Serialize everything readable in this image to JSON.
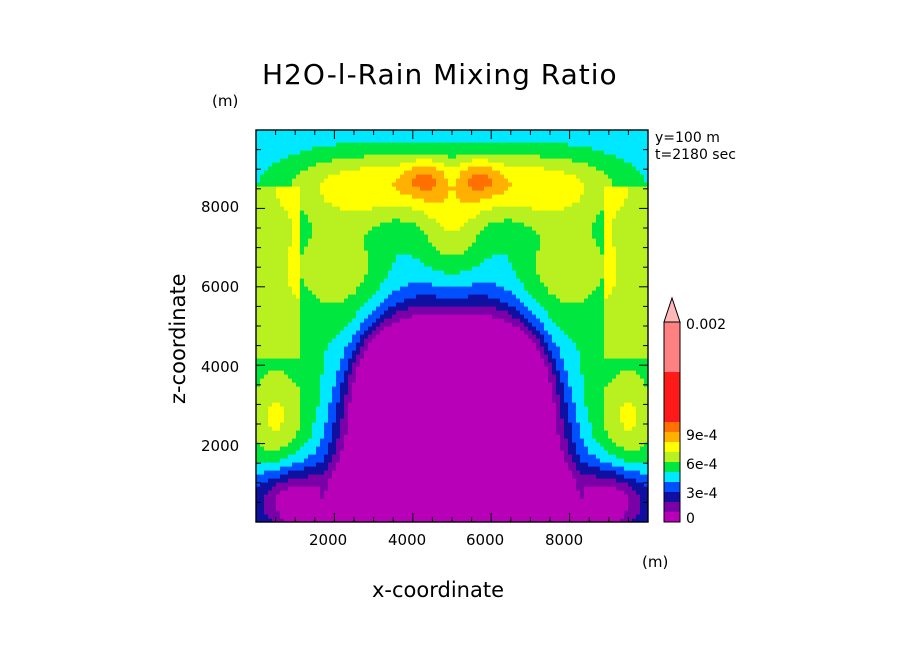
{
  "chart_data": {
    "type": "heatmap",
    "title": "H2O-l-Rain Mixing Ratio",
    "xlabel": "x-coordinate",
    "ylabel": "z-coordinate",
    "x_unit": "(m)",
    "y_unit": "(m)",
    "annotations": [
      "y=100 m",
      "t=2180 sec"
    ],
    "xlim": [
      0,
      10000
    ],
    "ylim": [
      0,
      10000
    ],
    "x_ticks": [
      2000,
      4000,
      6000,
      8000
    ],
    "x_tick_labels": [
      "2000",
      "4000",
      "6000",
      "8000"
    ],
    "y_ticks": [
      2000,
      4000,
      6000,
      8000
    ],
    "y_tick_labels": [
      "2000",
      "4000",
      "6000",
      "8000"
    ],
    "colorbar": {
      "levels": [
        0,
        0.0001,
        0.0002,
        0.0003,
        0.0004,
        0.0005,
        0.0006,
        0.0007,
        0.0008,
        0.0009,
        0.001,
        0.002
      ],
      "labels": [
        "0",
        "3e-4",
        "6e-4",
        "9e-4",
        "0.002"
      ],
      "colors": [
        "#b800b8",
        "#7a00a8",
        "#1010a0",
        "#0050ff",
        "#00e8ff",
        "#00e840",
        "#b8f020",
        "#ffff00",
        "#ffb000",
        "#ff7000",
        "#ff1a1a",
        "#ff8080",
        "#ffb8b8"
      ]
    },
    "grid": false,
    "legend": "right colorbar"
  }
}
